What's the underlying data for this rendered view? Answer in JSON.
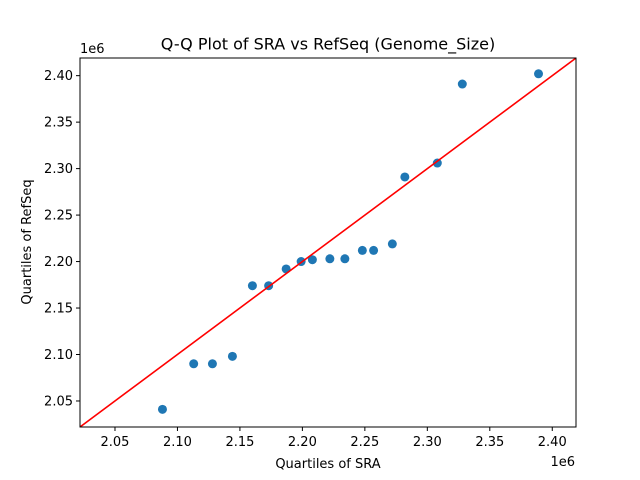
{
  "chart_data": {
    "type": "scatter",
    "title": "Q-Q Plot of SRA vs RefSeq (Genome_Size)",
    "xlabel": "Quartiles of SRA",
    "ylabel": "Quartiles of RefSeq",
    "x_offset_label": "1e6",
    "y_offset_label": "1e6",
    "xlim": [
      2.022,
      2.419
    ],
    "ylim": [
      2.022,
      2.419
    ],
    "x_ticks": [
      2.05,
      2.1,
      2.15,
      2.2,
      2.25,
      2.3,
      2.35,
      2.4
    ],
    "y_ticks": [
      2.05,
      2.1,
      2.15,
      2.2,
      2.25,
      2.3,
      2.35,
      2.4
    ],
    "x_tick_labels": [
      "2.05",
      "2.10",
      "2.15",
      "2.20",
      "2.25",
      "2.30",
      "2.35",
      "2.40"
    ],
    "y_tick_labels": [
      "2.05",
      "2.10",
      "2.15",
      "2.20",
      "2.25",
      "2.30",
      "2.35",
      "2.40"
    ],
    "grid": false,
    "point_color": "#1f77b4",
    "line_color": "#ff0000",
    "reference_line": "y = x",
    "points": [
      {
        "x": 2.088,
        "y": 2.041
      },
      {
        "x": 2.113,
        "y": 2.09
      },
      {
        "x": 2.128,
        "y": 2.09
      },
      {
        "x": 2.144,
        "y": 2.098
      },
      {
        "x": 2.16,
        "y": 2.174
      },
      {
        "x": 2.173,
        "y": 2.174
      },
      {
        "x": 2.187,
        "y": 2.192
      },
      {
        "x": 2.199,
        "y": 2.2
      },
      {
        "x": 2.208,
        "y": 2.202
      },
      {
        "x": 2.222,
        "y": 2.203
      },
      {
        "x": 2.234,
        "y": 2.203
      },
      {
        "x": 2.248,
        "y": 2.212
      },
      {
        "x": 2.257,
        "y": 2.212
      },
      {
        "x": 2.272,
        "y": 2.219
      },
      {
        "x": 2.282,
        "y": 2.291
      },
      {
        "x": 2.308,
        "y": 2.306
      },
      {
        "x": 2.328,
        "y": 2.391
      },
      {
        "x": 2.389,
        "y": 2.402
      }
    ]
  }
}
